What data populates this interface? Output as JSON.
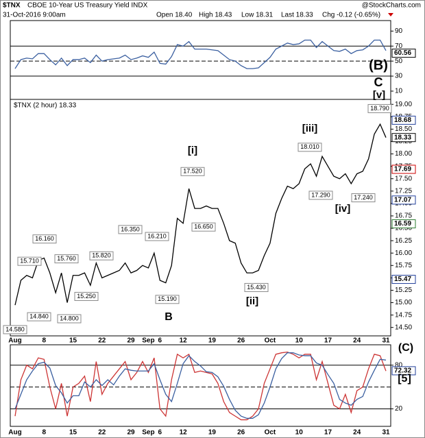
{
  "header": {
    "symbol": "$TNX",
    "name": "CBOE 10-Year US Treasury Yield INDX",
    "source": "@StockCharts.com",
    "date": "31-Oct-2016 9:00am",
    "open": "Open 18.40",
    "high": "High 18.43",
    "low": "Low 18.31",
    "last": "Last 18.33",
    "change": "Chg -0.12 (-0.65%)"
  },
  "chart_data": [
    {
      "type": "line",
      "ylim": [
        -1,
        104
      ],
      "yticks": [
        10,
        30,
        50,
        70,
        90
      ],
      "solid_lines": [
        30,
        70
      ],
      "dashed_lines": [
        50
      ],
      "series": [
        {
          "color": "#3a5fa0",
          "values": [
            40,
            52,
            54,
            53,
            60,
            60,
            52,
            45,
            54,
            44,
            52,
            52,
            54,
            48,
            58,
            50,
            52,
            53,
            54,
            58,
            52,
            54,
            57,
            55,
            62,
            47,
            46,
            56,
            72,
            70,
            76,
            66,
            66,
            66,
            65,
            64,
            58,
            52,
            50,
            44,
            40,
            40,
            41,
            48,
            55,
            66,
            70,
            74,
            72,
            73,
            78,
            78,
            68,
            76,
            70,
            64,
            63,
            66,
            60,
            64,
            65,
            70,
            78,
            78,
            64
          ]
        }
      ],
      "tags": [
        {
          "value": 60.56,
          "color": "#000000"
        }
      ],
      "annotations": [
        {
          "text": "(B)",
          "color": "#000000"
        },
        {
          "text": "C",
          "color": "#7030a0"
        }
      ]
    },
    {
      "type": "line",
      "title": "$TNX (2 hour) 18.33",
      "ylim": [
        14.33,
        19.1
      ],
      "yticks": [
        {
          "value": 14.5,
          "label": "14.50"
        },
        {
          "value": 14.75,
          "label": "14.75"
        },
        {
          "value": 15,
          "label": "15.00"
        },
        {
          "value": 15.25,
          "label": "15.25"
        },
        {
          "value": 15.5,
          "label": "15.50"
        },
        {
          "value": 15.75,
          "label": "15.75"
        },
        {
          "value": 16,
          "label": "16.00"
        },
        {
          "value": 16.25,
          "label": "16.25"
        },
        {
          "value": 16.5,
          "label": "16.50"
        },
        {
          "value": 16.75,
          "label": "16.75"
        },
        {
          "value": 17,
          "label": "17.00"
        },
        {
          "value": 17.25,
          "label": "17.25"
        },
        {
          "value": 17.5,
          "label": "17.50"
        },
        {
          "value": 17.75,
          "label": "17.75"
        },
        {
          "value": 18,
          "label": "18.00"
        },
        {
          "value": 18.25,
          "label": "18.25"
        },
        {
          "value": 18.5,
          "label": "18.50"
        },
        {
          "value": 18.75,
          "label": "18.75"
        },
        {
          "value": 19,
          "label": "19.00"
        }
      ],
      "categories": [
        "Aug",
        null,
        null,
        null,
        null,
        "8",
        null,
        null,
        null,
        null,
        "15",
        null,
        null,
        null,
        null,
        "22",
        null,
        null,
        null,
        null,
        "29",
        null,
        null,
        "Sep",
        null,
        "6",
        null,
        null,
        null,
        "12",
        null,
        null,
        null,
        null,
        "19",
        null,
        null,
        null,
        null,
        "26",
        null,
        null,
        null,
        null,
        "Oct",
        null,
        null,
        null,
        null,
        "10",
        null,
        null,
        null,
        null,
        "17",
        null,
        null,
        null,
        null,
        "24",
        null,
        null,
        null,
        null,
        "31"
      ],
      "series": [
        {
          "color": "#000000",
          "values": [
            14.95,
            15.45,
            15.55,
            15.5,
            15.85,
            15.9,
            15.6,
            15.2,
            15.6,
            15.0,
            15.55,
            15.55,
            15.6,
            15.35,
            15.8,
            15.5,
            15.55,
            15.6,
            15.65,
            15.8,
            15.6,
            15.65,
            15.75,
            15.7,
            16.0,
            15.45,
            15.4,
            15.75,
            16.7,
            16.6,
            17.3,
            16.9,
            16.9,
            16.95,
            16.9,
            16.9,
            16.6,
            16.25,
            16.2,
            15.8,
            15.6,
            15.6,
            15.65,
            15.95,
            16.2,
            16.8,
            17.1,
            17.35,
            17.3,
            17.4,
            17.7,
            17.8,
            17.55,
            17.95,
            17.75,
            17.55,
            17.5,
            17.6,
            17.4,
            17.6,
            17.65,
            17.9,
            18.4,
            18.6,
            18.33
          ]
        }
      ],
      "point_labels": [
        {
          "value": 17.52,
          "label": "17.520"
        },
        {
          "value": 18.01,
          "label": "18.010"
        },
        {
          "value": 18.79,
          "label": "18.790"
        },
        {
          "value": 16.16,
          "label": "16.160"
        },
        {
          "value": 15.71,
          "label": "15.710"
        },
        {
          "value": 15.76,
          "label": "15.760"
        },
        {
          "value": 15.82,
          "label": "15.820"
        },
        {
          "value": 16.35,
          "label": "16.350"
        },
        {
          "value": 16.21,
          "label": "16.210"
        },
        {
          "value": 16.65,
          "label": "16.650"
        },
        {
          "value": 17.29,
          "label": "17.290"
        },
        {
          "value": 17.24,
          "label": "17.240"
        },
        {
          "value": 15.25,
          "label": "15.250"
        },
        {
          "value": 14.84,
          "label": "14.840"
        },
        {
          "value": 14.8,
          "label": "14.800"
        },
        {
          "value": 15.19,
          "label": "15.190"
        },
        {
          "value": 15.43,
          "label": "15.430"
        },
        {
          "value": 14.58,
          "label": "14.580"
        }
      ],
      "tags": [
        {
          "value": 18.68,
          "color": "#1f3d99"
        },
        {
          "value": 18.33,
          "color": "#000000"
        },
        {
          "value": 17.69,
          "color": "#cc0000"
        },
        {
          "value": 17.07,
          "color": "#1f3d99"
        },
        {
          "value": 16.59,
          "color": "#2e7d32"
        },
        {
          "value": 15.47,
          "color": "#1f3d99"
        }
      ],
      "annotations": [
        {
          "text": "[i]",
          "color": "#cc0000"
        },
        {
          "text": "[ii]",
          "color": "#cc0000"
        },
        {
          "text": "[iii]",
          "color": "#cc0000"
        },
        {
          "text": "[iv]",
          "color": "#cc0000"
        },
        {
          "text": "[v]",
          "color": "#cc0000"
        },
        {
          "text": "B",
          "color": "#7030a0"
        }
      ]
    },
    {
      "type": "line",
      "ylim": [
        -4,
        108
      ],
      "yticks": [
        20,
        80
      ],
      "solid_lines": [
        20,
        80
      ],
      "dashed_lines": [
        50
      ],
      "series": [
        {
          "color": "#cc3333",
          "values": [
            10,
            60,
            80,
            75,
            90,
            88,
            50,
            20,
            55,
            10,
            50,
            55,
            65,
            30,
            85,
            40,
            55,
            65,
            75,
            85,
            60,
            70,
            85,
            70,
            90,
            20,
            10,
            60,
            95,
            90,
            95,
            70,
            72,
            70,
            68,
            55,
            30,
            15,
            10,
            5,
            5,
            10,
            20,
            55,
            75,
            95,
            97,
            98,
            95,
            90,
            95,
            95,
            60,
            85,
            55,
            25,
            20,
            40,
            15,
            45,
            50,
            75,
            95,
            93,
            72
          ]
        },
        {
          "color": "#3a5fa0",
          "values": [
            20,
            40,
            60,
            72,
            82,
            84,
            76,
            52,
            42,
            28,
            38,
            38,
            57,
            50,
            60,
            52,
            60,
            53,
            65,
            75,
            73,
            72,
            72,
            72,
            82,
            60,
            40,
            30,
            55,
            82,
            93,
            85,
            79,
            71,
            70,
            64,
            51,
            33,
            18,
            10,
            7,
            7,
            12,
            28,
            50,
            75,
            89,
            97,
            97,
            94,
            93,
            93,
            83,
            80,
            67,
            55,
            33,
            28,
            25,
            33,
            37,
            57,
            73,
            88,
            87
          ]
        }
      ],
      "tags": [
        {
          "value": 72.32,
          "color": "#1f3d99"
        }
      ],
      "annotations": [
        {
          "text": "(C)",
          "color": "#000000"
        },
        {
          "text": "[5]",
          "color": "#1f3d99"
        }
      ]
    }
  ]
}
